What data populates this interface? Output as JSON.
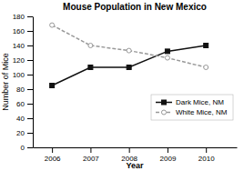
{
  "chart_data": {
    "type": "line",
    "title": "Mouse Population in New Mexico",
    "xlabel": "Year",
    "ylabel": "Number of Mice",
    "x": [
      2006,
      2007,
      2008,
      2009,
      2010
    ],
    "series": [
      {
        "name": "Dark Mice, NM",
        "color": "#111111",
        "marker": "square",
        "line_style": "solid",
        "values": [
          85,
          110,
          110,
          132,
          140
        ]
      },
      {
        "name": "White Mice, NM",
        "color": "#999999",
        "marker": "circle-open",
        "line_style": "dashed",
        "values": [
          168,
          140,
          133,
          123,
          110
        ]
      }
    ],
    "xlim": [
      2005.5,
      2010.8
    ],
    "xticks": [
      2006,
      2007,
      2008,
      2009,
      2010
    ],
    "ylim": [
      0,
      180
    ],
    "yticks": [
      0,
      20,
      40,
      60,
      80,
      100,
      120,
      140,
      160,
      180
    ],
    "grid": false,
    "legend": "lower right"
  }
}
